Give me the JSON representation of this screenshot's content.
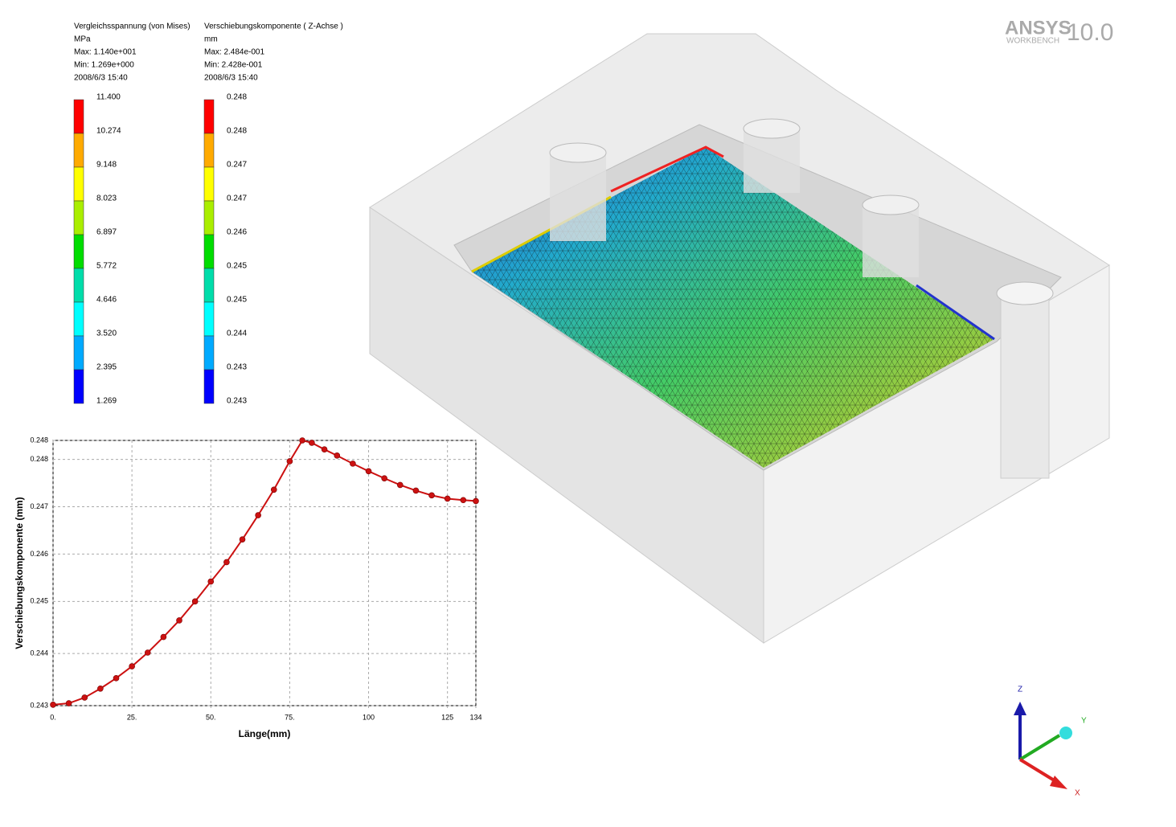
{
  "logo": {
    "brand": "ANSYS",
    "product": "WORKBENCH",
    "version": "10.0"
  },
  "legends": [
    {
      "title": "Vergleichsspannung (von Mises)",
      "unit": "MPa",
      "max": "Max: 1.140e+001",
      "min": "Min: 1.269e+000",
      "date": "2008/6/3 15:40",
      "labels": [
        "11.400",
        "10.274",
        "9.148",
        "8.023",
        "6.897",
        "5.772",
        "4.646",
        "3.520",
        "2.395",
        "1.269"
      ],
      "colors": [
        "#ff0000",
        "#ffaa00",
        "#ffff00",
        "#aaee00",
        "#00dd00",
        "#00ddaa",
        "#00ffff",
        "#00aaff",
        "#0000ff"
      ]
    },
    {
      "title": "Verschiebungskomponente ( Z-Achse )",
      "unit": "mm",
      "max": "Max: 2.484e-001",
      "min": "Min: 2.428e-001",
      "date": "2008/6/3 15:40",
      "labels": [
        "0.248",
        "0.248",
        "0.247",
        "0.247",
        "0.246",
        "0.245",
        "0.245",
        "0.244",
        "0.243",
        "0.243"
      ],
      "colors": [
        "#ff0000",
        "#ffaa00",
        "#ffff00",
        "#aaee00",
        "#00dd00",
        "#00ddaa",
        "#00ffff",
        "#00aaff",
        "#0000ff"
      ]
    }
  ],
  "chart_data": {
    "type": "line",
    "x_label": "Länge(mm)",
    "y_label": "Verschiebungskomponente (mm)",
    "x": [
      0,
      5,
      10,
      15,
      20,
      25,
      30,
      35,
      40,
      45,
      50,
      55,
      60,
      65,
      70,
      75,
      79,
      82,
      86,
      90,
      95,
      100,
      105,
      110,
      115,
      120,
      125,
      130,
      134
    ],
    "series": [
      {
        "color": "#cc1111",
        "values": [
          0.24282,
          0.24285,
          0.24297,
          0.24316,
          0.24338,
          0.24363,
          0.24392,
          0.24425,
          0.2446,
          0.245,
          0.24542,
          0.24583,
          0.24631,
          0.24682,
          0.24736,
          0.24796,
          0.2484,
          0.24835,
          0.24821,
          0.24808,
          0.24791,
          0.24775,
          0.2476,
          0.24746,
          0.24734,
          0.24724,
          0.24717,
          0.24714,
          0.24712
        ]
      }
    ],
    "xlim": [
      0,
      134
    ],
    "ylim": [
      0.2428,
      0.2484
    ],
    "xticks": [
      {
        "value": 0,
        "label": "0."
      },
      {
        "value": 25,
        "label": "25."
      },
      {
        "value": 50,
        "label": "50."
      },
      {
        "value": 75,
        "label": "75."
      },
      100,
      125,
      134
    ],
    "yticks": [
      {
        "value": 0.2428,
        "label": "0.243"
      },
      {
        "value": 0.2439,
        "label": "0.244"
      },
      {
        "value": 0.245,
        "label": "0.245"
      },
      {
        "value": 0.246,
        "label": "0.246"
      },
      {
        "value": 0.247,
        "label": "0.247"
      },
      {
        "value": 0.248,
        "label": "0.248"
      },
      {
        "value": 0.2484,
        "label": "0.248"
      }
    ],
    "grid": true
  },
  "triad": {
    "z": "Z",
    "y": "Y",
    "x": "X"
  }
}
